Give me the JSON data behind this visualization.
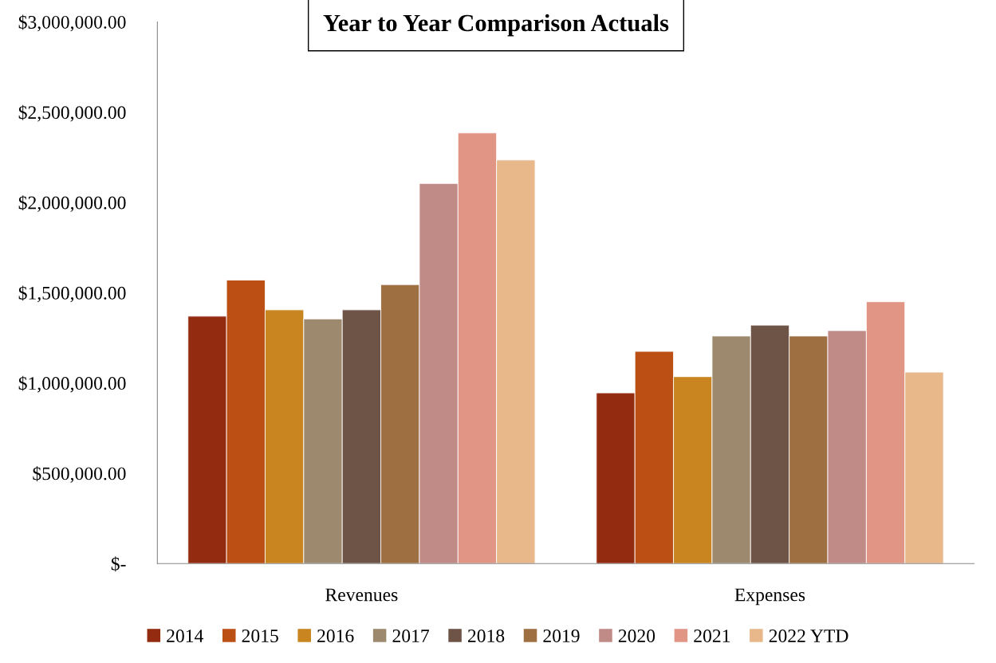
{
  "chart_data": {
    "type": "bar",
    "title": "Year to Year Comparison Actuals",
    "categories": [
      "Revenues",
      "Expenses"
    ],
    "series": [
      {
        "name": "2014",
        "color": "#922b0f",
        "values": [
          1370000,
          945000
        ]
      },
      {
        "name": "2015",
        "color": "#bc4f14",
        "values": [
          1570000,
          1175000
        ]
      },
      {
        "name": "2016",
        "color": "#c88520",
        "values": [
          1405000,
          1035000
        ]
      },
      {
        "name": "2017",
        "color": "#9d8a6e",
        "values": [
          1355000,
          1260000
        ]
      },
      {
        "name": "2018",
        "color": "#6e5347",
        "values": [
          1405000,
          1320000
        ]
      },
      {
        "name": "2019",
        "color": "#9e6f40",
        "values": [
          1545000,
          1260000
        ]
      },
      {
        "name": "2020",
        "color": "#c08a86",
        "values": [
          2105000,
          1290000
        ]
      },
      {
        "name": "2021",
        "color": "#e09585",
        "values": [
          2385000,
          1450000
        ]
      },
      {
        "name": "2022 YTD",
        "color": "#e8b88a",
        "values": [
          2235000,
          1060000
        ]
      }
    ],
    "ylim": [
      0,
      3000000
    ],
    "yticks": [
      {
        "value": 0,
        "label": "$-"
      },
      {
        "value": 500000,
        "label": "$500,000.00"
      },
      {
        "value": 1000000,
        "label": "$1,000,000.00"
      },
      {
        "value": 1500000,
        "label": "$1,500,000.00"
      },
      {
        "value": 2000000,
        "label": "$2,000,000.00"
      },
      {
        "value": 2500000,
        "label": "$2,500,000.00"
      },
      {
        "value": 3000000,
        "label": "$3,000,000.00"
      }
    ],
    "grid": false,
    "legend": "bottom"
  }
}
